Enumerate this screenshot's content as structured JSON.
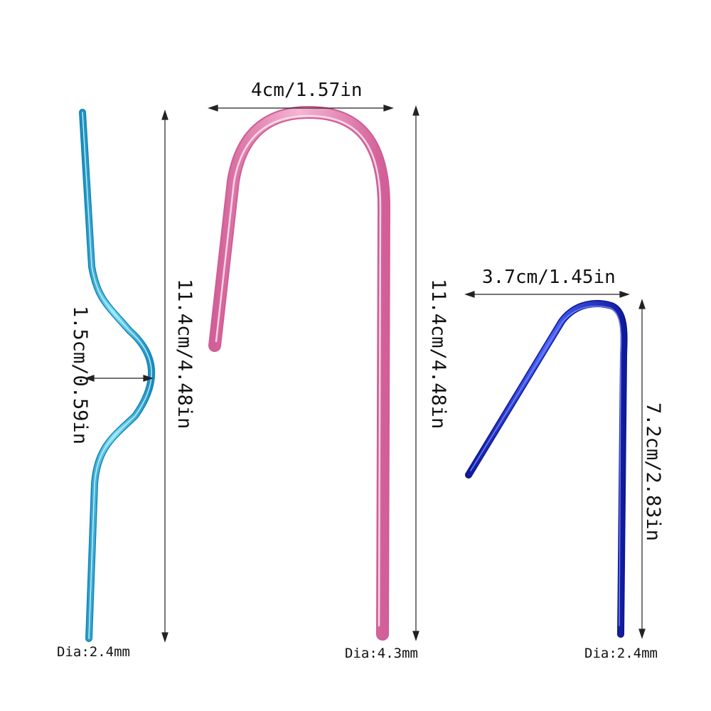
{
  "needles": {
    "cyan": {
      "color": "#2aa6d6",
      "height_label": "11.4cm/4.48in",
      "bend_label": "1.5cm/0.59in",
      "diameter_label": "Dia:2.4mm"
    },
    "pink": {
      "color": "#e07fae",
      "width_label": "4cm/1.57in",
      "height_label": "11.4cm/4.48in",
      "diameter_label": "Dia:4.3mm"
    },
    "blue": {
      "color": "#1f2fc4",
      "width_label": "3.7cm/1.45in",
      "height_label": "7.2cm/2.83in",
      "diameter_label": "Dia:2.4mm"
    }
  }
}
